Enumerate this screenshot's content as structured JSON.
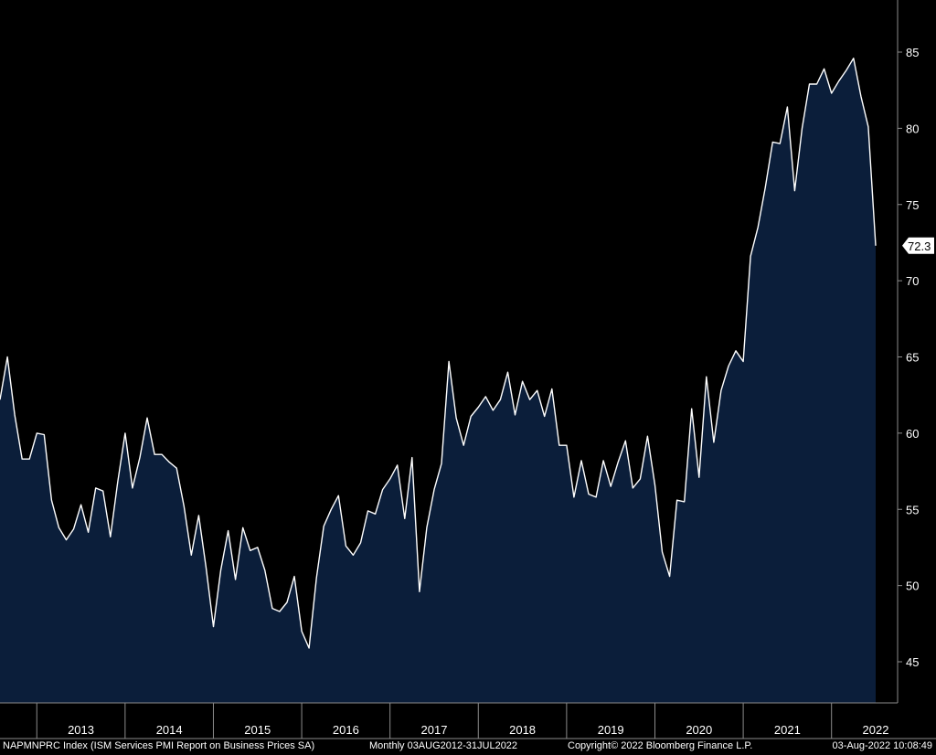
{
  "chart_data": {
    "type": "area",
    "title": "",
    "xlabel": "",
    "ylabel": "",
    "ylim": [
      42.5,
      88
    ],
    "xlim": [
      "2012-08",
      "2022-07"
    ],
    "y_ticks": [
      45,
      50,
      55,
      60,
      65,
      70,
      75,
      80,
      85
    ],
    "x_ticks": [
      "2013",
      "2014",
      "2015",
      "2016",
      "2017",
      "2018",
      "2019",
      "2020",
      "2021",
      "2022"
    ],
    "y_axis_side": "right",
    "grid": false,
    "legend": "none",
    "last_value_label": "72.3",
    "series": [
      {
        "values": [
          {
            "x": "2012-08",
            "y": 62.2
          },
          {
            "x": "2012-09",
            "y": 65.0
          },
          {
            "x": "2012-10",
            "y": 61.2
          },
          {
            "x": "2012-11",
            "y": 58.3
          },
          {
            "x": "2012-12",
            "y": 58.3
          },
          {
            "x": "2013-01",
            "y": 60.0
          },
          {
            "x": "2013-02",
            "y": 59.9
          },
          {
            "x": "2013-03",
            "y": 55.6
          },
          {
            "x": "2013-04",
            "y": 53.8
          },
          {
            "x": "2013-05",
            "y": 53.0
          },
          {
            "x": "2013-06",
            "y": 53.7
          },
          {
            "x": "2013-07",
            "y": 55.3
          },
          {
            "x": "2013-08",
            "y": 53.5
          },
          {
            "x": "2013-09",
            "y": 56.4
          },
          {
            "x": "2013-10",
            "y": 56.2
          },
          {
            "x": "2013-11",
            "y": 53.2
          },
          {
            "x": "2013-12",
            "y": 56.8
          },
          {
            "x": "2014-01",
            "y": 60.0
          },
          {
            "x": "2014-02",
            "y": 56.4
          },
          {
            "x": "2014-03",
            "y": 58.4
          },
          {
            "x": "2014-04",
            "y": 61.0
          },
          {
            "x": "2014-05",
            "y": 58.6
          },
          {
            "x": "2014-06",
            "y": 58.6
          },
          {
            "x": "2014-07",
            "y": 58.1
          },
          {
            "x": "2014-08",
            "y": 57.7
          },
          {
            "x": "2014-09",
            "y": 55.2
          },
          {
            "x": "2014-10",
            "y": 52.0
          },
          {
            "x": "2014-11",
            "y": 54.6
          },
          {
            "x": "2014-12",
            "y": 51.2
          },
          {
            "x": "2015-01",
            "y": 47.3
          },
          {
            "x": "2015-02",
            "y": 51.0
          },
          {
            "x": "2015-03",
            "y": 53.6
          },
          {
            "x": "2015-04",
            "y": 50.4
          },
          {
            "x": "2015-05",
            "y": 53.8
          },
          {
            "x": "2015-06",
            "y": 52.3
          },
          {
            "x": "2015-07",
            "y": 52.5
          },
          {
            "x": "2015-08",
            "y": 51.0
          },
          {
            "x": "2015-09",
            "y": 48.5
          },
          {
            "x": "2015-10",
            "y": 48.3
          },
          {
            "x": "2015-11",
            "y": 48.9
          },
          {
            "x": "2015-12",
            "y": 50.6
          },
          {
            "x": "2016-01",
            "y": 47.0
          },
          {
            "x": "2016-02",
            "y": 45.9
          },
          {
            "x": "2016-03",
            "y": 50.5
          },
          {
            "x": "2016-04",
            "y": 53.9
          },
          {
            "x": "2016-05",
            "y": 55.0
          },
          {
            "x": "2016-06",
            "y": 55.9
          },
          {
            "x": "2016-07",
            "y": 52.6
          },
          {
            "x": "2016-08",
            "y": 52.0
          },
          {
            "x": "2016-09",
            "y": 52.8
          },
          {
            "x": "2016-10",
            "y": 54.9
          },
          {
            "x": "2016-11",
            "y": 54.7
          },
          {
            "x": "2016-12",
            "y": 56.3
          },
          {
            "x": "2017-01",
            "y": 57.0
          },
          {
            "x": "2017-02",
            "y": 57.9
          },
          {
            "x": "2017-03",
            "y": 54.4
          },
          {
            "x": "2017-04",
            "y": 58.4
          },
          {
            "x": "2017-05",
            "y": 49.6
          },
          {
            "x": "2017-06",
            "y": 53.8
          },
          {
            "x": "2017-07",
            "y": 56.3
          },
          {
            "x": "2017-08",
            "y": 58.0
          },
          {
            "x": "2017-09",
            "y": 64.7
          },
          {
            "x": "2017-10",
            "y": 61.0
          },
          {
            "x": "2017-11",
            "y": 59.2
          },
          {
            "x": "2017-12",
            "y": 61.1
          },
          {
            "x": "2018-01",
            "y": 61.7
          },
          {
            "x": "2018-02",
            "y": 62.4
          },
          {
            "x": "2018-03",
            "y": 61.5
          },
          {
            "x": "2018-04",
            "y": 62.2
          },
          {
            "x": "2018-05",
            "y": 64.0
          },
          {
            "x": "2018-06",
            "y": 61.2
          },
          {
            "x": "2018-07",
            "y": 63.4
          },
          {
            "x": "2018-08",
            "y": 62.2
          },
          {
            "x": "2018-09",
            "y": 62.8
          },
          {
            "x": "2018-10",
            "y": 61.1
          },
          {
            "x": "2018-11",
            "y": 62.9
          },
          {
            "x": "2018-12",
            "y": 59.2
          },
          {
            "x": "2019-01",
            "y": 59.2
          },
          {
            "x": "2019-02",
            "y": 55.8
          },
          {
            "x": "2019-03",
            "y": 58.2
          },
          {
            "x": "2019-04",
            "y": 56.0
          },
          {
            "x": "2019-05",
            "y": 55.8
          },
          {
            "x": "2019-06",
            "y": 58.2
          },
          {
            "x": "2019-07",
            "y": 56.5
          },
          {
            "x": "2019-08",
            "y": 58.1
          },
          {
            "x": "2019-09",
            "y": 59.5
          },
          {
            "x": "2019-10",
            "y": 56.4
          },
          {
            "x": "2019-11",
            "y": 57.0
          },
          {
            "x": "2019-12",
            "y": 59.8
          },
          {
            "x": "2020-01",
            "y": 56.6
          },
          {
            "x": "2020-02",
            "y": 52.2
          },
          {
            "x": "2020-03",
            "y": 50.6
          },
          {
            "x": "2020-04",
            "y": 55.6
          },
          {
            "x": "2020-05",
            "y": 55.5
          },
          {
            "x": "2020-06",
            "y": 61.6
          },
          {
            "x": "2020-07",
            "y": 57.1
          },
          {
            "x": "2020-08",
            "y": 63.7
          },
          {
            "x": "2020-09",
            "y": 59.4
          },
          {
            "x": "2020-10",
            "y": 62.8
          },
          {
            "x": "2020-11",
            "y": 64.4
          },
          {
            "x": "2020-12",
            "y": 65.4
          },
          {
            "x": "2021-01",
            "y": 64.7
          },
          {
            "x": "2021-02",
            "y": 71.6
          },
          {
            "x": "2021-03",
            "y": 73.5
          },
          {
            "x": "2021-04",
            "y": 76.1
          },
          {
            "x": "2021-05",
            "y": 79.1
          },
          {
            "x": "2021-06",
            "y": 79.0
          },
          {
            "x": "2021-07",
            "y": 81.4
          },
          {
            "x": "2021-08",
            "y": 75.9
          },
          {
            "x": "2021-09",
            "y": 80.0
          },
          {
            "x": "2021-10",
            "y": 82.9
          },
          {
            "x": "2021-11",
            "y": 82.9
          },
          {
            "x": "2021-12",
            "y": 83.9
          },
          {
            "x": "2022-01",
            "y": 82.3
          },
          {
            "x": "2022-02",
            "y": 83.1
          },
          {
            "x": "2022-03",
            "y": 83.8
          },
          {
            "x": "2022-04",
            "y": 84.6
          },
          {
            "x": "2022-05",
            "y": 82.1
          },
          {
            "x": "2022-06",
            "y": 80.1
          },
          {
            "x": "2022-07",
            "y": 72.3
          }
        ]
      }
    ]
  },
  "colors": {
    "background": "#000000",
    "area_fill": "#0b1e3a",
    "line": "#ffffff",
    "axis": "#8c8c8c",
    "text": "#ffffff"
  },
  "footer": {
    "index": "NAPMNPRC Index (ISM Services PMI Report on Business Prices SA)",
    "period": "Monthly 03AUG2012-31JUL2022",
    "copyright": "Copyright© 2022 Bloomberg Finance L.P.",
    "timestamp": "03-Aug-2022 10:08:49"
  }
}
